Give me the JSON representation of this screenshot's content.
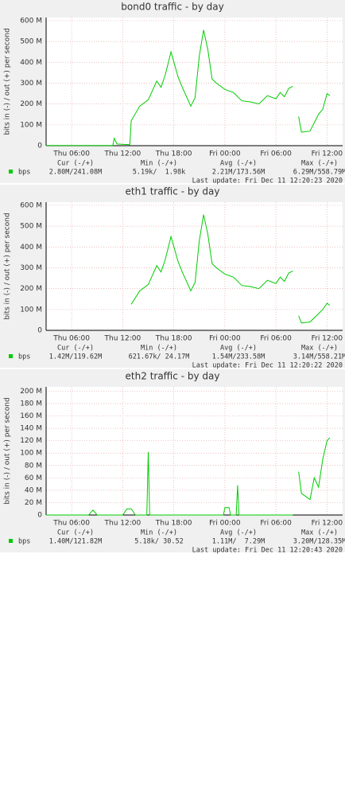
{
  "chart_data": [
    {
      "type": "line",
      "title": "bond0 traffic - by day",
      "y_label": "bits in (-) / out (+) per second",
      "x": [
        "Thu 03:00",
        "Thu 10:50",
        "Thu 11:00",
        "Thu 11:20",
        "Thu 12:50",
        "Thu 13:00",
        "Thu 14:00",
        "Thu 15:00",
        "Thu 16:00",
        "Thu 16:30",
        "Thu 17:00",
        "Thu 17:40",
        "Thu 18:30",
        "Thu 19:00",
        "Thu 20:00",
        "Thu 20:30",
        "Thu 21:00",
        "Thu 21:30",
        "Thu 22:00",
        "Thu 22:30",
        "Thu 23:00",
        "Fri 00:00",
        "Fri 01:00",
        "Fri 02:00",
        "Fri 03:00",
        "Fri 04:00",
        "Fri 05:00",
        "Fri 06:00",
        "Fri 06:30",
        "Fri 07:00",
        "Fri 07:30",
        "Fri 08:00",
        "Fri 08:20",
        "Fri 08:40",
        "Fri 09:00",
        "Fri 10:00",
        "Fri 11:00",
        "Fri 11:30",
        "Fri 12:00",
        "Fri 12:20"
      ],
      "series": [
        {
          "name": "bps",
          "color": "#00cc00",
          "values": [
            1,
            1,
            35,
            8,
            5,
            120,
            190,
            220,
            310,
            280,
            340,
            450,
            330,
            280,
            190,
            230,
            430,
            555,
            460,
            320,
            300,
            270,
            255,
            215,
            210,
            200,
            240,
            225,
            255,
            235,
            275,
            285,
            null,
            140,
            65,
            70,
            150,
            175,
            250,
            240
          ]
        }
      ],
      "xlim": [
        "Thu 03:00",
        "Fri 13:50"
      ],
      "xticks": [
        "Thu 06:00",
        "Thu 12:00",
        "Thu 18:00",
        "Fri 00:00",
        "Fri 06:00",
        "Fri 12:00"
      ],
      "ylim": [
        0,
        615
      ],
      "yticks": [
        0,
        {
          "value": 100,
          "label": "100 M"
        },
        {
          "value": 200,
          "label": "200 M"
        },
        {
          "value": 300,
          "label": "300 M"
        },
        {
          "value": 400,
          "label": "400 M"
        },
        {
          "value": 500,
          "label": "500 M"
        },
        {
          "value": 600,
          "label": "600 M"
        }
      ],
      "grid": true,
      "stats_headers": [
        "Cur (-/+)",
        "Min (-/+)",
        "Avg (-/+)",
        "Max (-/+)"
      ],
      "stats_values": [
        "2.80M/241.08M",
        "5.19k/  1.98k",
        "2.21M/173.56M",
        "6.29M/558.79M"
      ],
      "last_update": "Last update: Fri Dec 11 12:20:23 2020"
    },
    {
      "type": "line",
      "title": "eth1 traffic - by day",
      "y_label": "bits in (-) / out (+) per second",
      "x": [
        "Thu 03:00",
        "Thu 10:50",
        "Thu 11:00",
        "Thu 11:20",
        "Thu 12:50",
        "Thu 13:00",
        "Thu 14:00",
        "Thu 15:00",
        "Thu 16:00",
        "Thu 16:30",
        "Thu 17:00",
        "Thu 17:40",
        "Thu 18:30",
        "Thu 19:00",
        "Thu 20:00",
        "Thu 20:30",
        "Thu 21:00",
        "Thu 21:30",
        "Thu 22:00",
        "Thu 22:30",
        "Thu 23:00",
        "Fri 00:00",
        "Fri 01:00",
        "Fri 02:00",
        "Fri 03:00",
        "Fri 04:00",
        "Fri 05:00",
        "Fri 06:00",
        "Fri 06:30",
        "Fri 07:00",
        "Fri 07:30",
        "Fri 08:00",
        "Fri 08:20",
        "Fri 08:40",
        "Fri 09:00",
        "Fri 10:00",
        "Fri 11:00",
        "Fri 11:30",
        "Fri 12:00",
        "Fri 12:20"
      ],
      "series": [
        {
          "name": "bps",
          "color": "#00cc00",
          "values": [
            null,
            null,
            null,
            null,
            null,
            125,
            190,
            220,
            310,
            280,
            340,
            450,
            330,
            280,
            190,
            230,
            430,
            555,
            460,
            320,
            300,
            270,
            255,
            215,
            210,
            200,
            240,
            225,
            255,
            235,
            275,
            285,
            null,
            70,
            35,
            40,
            80,
            100,
            130,
            120
          ]
        }
      ],
      "xlim": [
        "Thu 03:00",
        "Fri 13:50"
      ],
      "xticks": [
        "Thu 06:00",
        "Thu 12:00",
        "Thu 18:00",
        "Fri 00:00",
        "Fri 06:00",
        "Fri 12:00"
      ],
      "ylim": [
        0,
        615
      ],
      "yticks": [
        0,
        {
          "value": 100,
          "label": "100 M"
        },
        {
          "value": 200,
          "label": "200 M"
        },
        {
          "value": 300,
          "label": "300 M"
        },
        {
          "value": 400,
          "label": "400 M"
        },
        {
          "value": 500,
          "label": "500 M"
        },
        {
          "value": 600,
          "label": "600 M"
        }
      ],
      "grid": true,
      "stats_headers": [
        "Cur (-/+)",
        "Min (-/+)",
        "Avg (-/+)",
        "Max (-/+)"
      ],
      "stats_values": [
        "1.42M/119.62M",
        "621.67k/ 24.17M",
        "1.54M/233.58M",
        "3.14M/558.21M"
      ],
      "last_update": "Last update: Fri Dec 11 12:20:22 2020"
    },
    {
      "type": "line",
      "title": "eth2 traffic - by day",
      "y_label": "bits in (-) / out (+) per second",
      "x": [
        "Thu 03:00",
        "Thu 08:00",
        "Thu 08:30",
        "Thu 09:00",
        "Thu 12:00",
        "Thu 12:30",
        "Thu 13:00",
        "Thu 13:30",
        "Thu 14:50",
        "Thu 15:00",
        "Thu 15:10",
        "Thu 23:50",
        "Fri 00:00",
        "Fri 00:30",
        "Fri 00:40",
        "Fri 01:20",
        "Fri 01:30",
        "Fri 01:40",
        "Fri 08:00",
        "Fri 08:30",
        "Fri 08:40",
        "Fri 09:00",
        "Fri 09:30",
        "Fri 10:00",
        "Fri 10:30",
        "Fri 11:00",
        "Fri 11:30",
        "Fri 12:00",
        "Fri 12:20"
      ],
      "series": [
        {
          "name": "bps",
          "color": "#00cc00",
          "values": [
            0,
            0,
            8,
            0,
            0,
            10,
            10,
            0,
            0,
            102,
            0,
            0,
            12,
            12,
            0,
            0,
            48,
            0,
            0,
            null,
            70,
            35,
            30,
            25,
            60,
            45,
            90,
            120,
            125
          ]
        }
      ],
      "xlim": [
        "Thu 03:00",
        "Fri 13:50"
      ],
      "xticks": [
        "Thu 06:00",
        "Thu 12:00",
        "Thu 18:00",
        "Fri 00:00",
        "Fri 06:00",
        "Fri 12:00"
      ],
      "ylim": [
        0,
        207
      ],
      "yticks": [
        0,
        {
          "value": 20,
          "label": "20 M"
        },
        {
          "value": 40,
          "label": "40 M"
        },
        {
          "value": 60,
          "label": "60 M"
        },
        {
          "value": 80,
          "label": "80 M"
        },
        {
          "value": 100,
          "label": "100 M"
        },
        {
          "value": 120,
          "label": "120 M"
        },
        {
          "value": 140,
          "label": "140 M"
        },
        {
          "value": 160,
          "label": "160 M"
        },
        {
          "value": 180,
          "label": "180 M"
        },
        {
          "value": 200,
          "label": "200 M"
        }
      ],
      "grid": true,
      "stats_headers": [
        "Cur (-/+)",
        "Min (-/+)",
        "Avg (-/+)",
        "Max (-/+)"
      ],
      "stats_values": [
        "1.40M/121.82M",
        "5.18k/ 30.52",
        "1.11M/  7.29M",
        "3.20M/128.35M"
      ],
      "last_update": "Last update: Fri Dec 11 12:20:43 2020"
    }
  ]
}
